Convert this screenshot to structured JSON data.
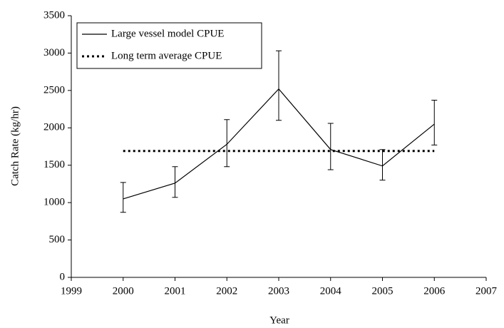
{
  "chart_data": {
    "type": "line",
    "x_label": "Year",
    "y_label": "Catch Rate (kg/hr)",
    "xlim": [
      1999,
      2007
    ],
    "xticks": [
      1999,
      2000,
      2001,
      2002,
      2003,
      2004,
      2005,
      2006,
      2007
    ],
    "ylim": [
      0,
      3500
    ],
    "yticks": [
      0,
      500,
      1000,
      1500,
      2000,
      2500,
      3000,
      3500
    ],
    "legend": "upper left",
    "series": [
      {
        "name": "Large vessel model CPUE",
        "color": "#000000",
        "style": "solid",
        "x": [
          2000,
          2001,
          2002,
          2003,
          2004,
          2005,
          2006
        ],
        "values": [
          1050,
          1260,
          1780,
          2520,
          1710,
          1490,
          2050
        ],
        "error_plus": [
          220,
          220,
          330,
          510,
          350,
          220,
          320
        ],
        "error_minus": [
          180,
          190,
          300,
          420,
          270,
          190,
          280
        ]
      },
      {
        "name": "Long term average CPUE",
        "color": "#000000",
        "style": "dotted",
        "x": [
          2000,
          2006
        ],
        "values": [
          1690,
          1690
        ]
      }
    ]
  }
}
